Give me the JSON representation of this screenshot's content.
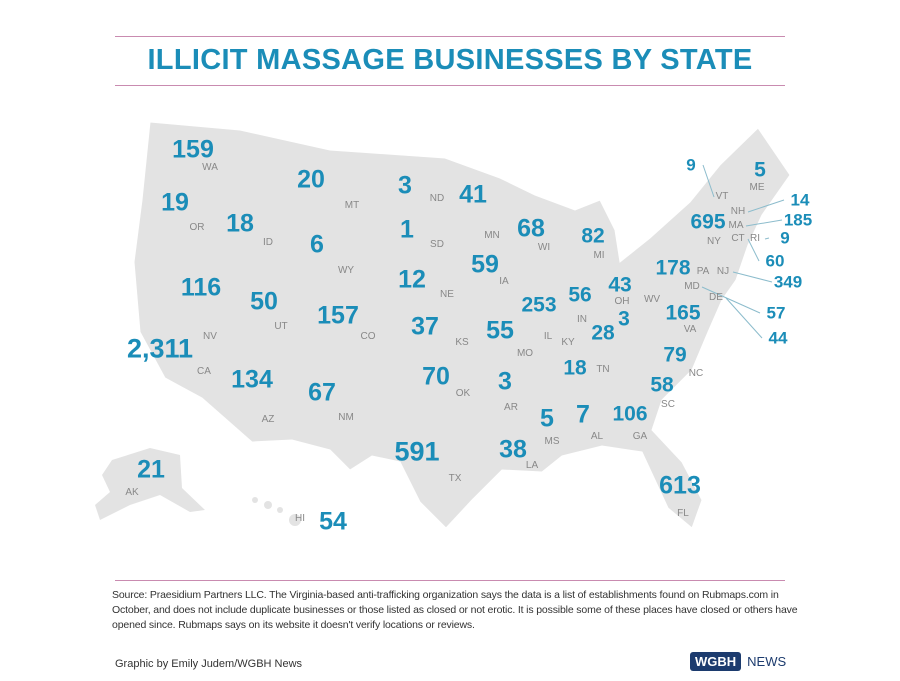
{
  "title": "ILLICIT MASSAGE BUSINESSES BY STATE",
  "colors": {
    "number": "#1b8db8",
    "map_fill": "#e3e3e3",
    "state_border": "#ffffff",
    "rule": "#c98bb0"
  },
  "states": [
    {
      "abbr": "WA",
      "value": "159"
    },
    {
      "abbr": "OR",
      "value": "19"
    },
    {
      "abbr": "ID",
      "value": "18"
    },
    {
      "abbr": "MT",
      "value": "20"
    },
    {
      "abbr": "WY",
      "value": "6"
    },
    {
      "abbr": "ND",
      "value": "3"
    },
    {
      "abbr": "SD",
      "value": "1"
    },
    {
      "abbr": "NE",
      "value": "12"
    },
    {
      "abbr": "MN",
      "value": "41"
    },
    {
      "abbr": "WI",
      "value": "68"
    },
    {
      "abbr": "IA",
      "value": "59"
    },
    {
      "abbr": "MI",
      "value": "82"
    },
    {
      "abbr": "IL",
      "value": "253"
    },
    {
      "abbr": "IN",
      "value": "56"
    },
    {
      "abbr": "OH",
      "value": "43"
    },
    {
      "abbr": "KY",
      "value": "28"
    },
    {
      "abbr": "WV",
      "value": "3"
    },
    {
      "abbr": "VA",
      "value": "165"
    },
    {
      "abbr": "NC",
      "value": "79"
    },
    {
      "abbr": "SC",
      "value": "58"
    },
    {
      "abbr": "GA",
      "value": "106"
    },
    {
      "abbr": "FL",
      "value": "613"
    },
    {
      "abbr": "AL",
      "value": "7"
    },
    {
      "abbr": "MS",
      "value": "5"
    },
    {
      "abbr": "TN",
      "value": "18"
    },
    {
      "abbr": "LA",
      "value": "38"
    },
    {
      "abbr": "AR",
      "value": "3"
    },
    {
      "abbr": "MO",
      "value": "55"
    },
    {
      "abbr": "KS",
      "value": "37"
    },
    {
      "abbr": "OK",
      "value": "70"
    },
    {
      "abbr": "TX",
      "value": "591"
    },
    {
      "abbr": "NM",
      "value": "67"
    },
    {
      "abbr": "CO",
      "value": "157"
    },
    {
      "abbr": "UT",
      "value": "50"
    },
    {
      "abbr": "AZ",
      "value": "134"
    },
    {
      "abbr": "NV",
      "value": "116"
    },
    {
      "abbr": "CA",
      "value": "2,311"
    },
    {
      "abbr": "AK",
      "value": "21"
    },
    {
      "abbr": "HI",
      "value": "54"
    },
    {
      "abbr": "NY",
      "value": "695"
    },
    {
      "abbr": "PA",
      "value": "178"
    },
    {
      "abbr": "MD",
      "value": "57"
    },
    {
      "abbr": "VT",
      "value": "9"
    },
    {
      "abbr": "ME",
      "value": "5"
    },
    {
      "abbr": "NH",
      "value": "14"
    },
    {
      "abbr": "MA",
      "value": "185"
    },
    {
      "abbr": "RI",
      "value": "9"
    },
    {
      "abbr": "CT",
      "value": "60"
    },
    {
      "abbr": "NJ",
      "value": "349"
    },
    {
      "abbr": "DE",
      "value": "44"
    }
  ],
  "source": "Source: Praesidium Partners LLC. The Virginia-based anti-trafficking organization says the data is a list of establishments found on Rubmaps.com in October, and does not include duplicate businesses or those listed as closed or not erotic. It is possible some of these places have closed or others have opened since. Rubmaps says on its website it doesn't verify locations or reviews.",
  "credit": "Graphic by Emily Judem/WGBH News",
  "logo": {
    "mark": "WGBH",
    "text": "NEWS"
  }
}
